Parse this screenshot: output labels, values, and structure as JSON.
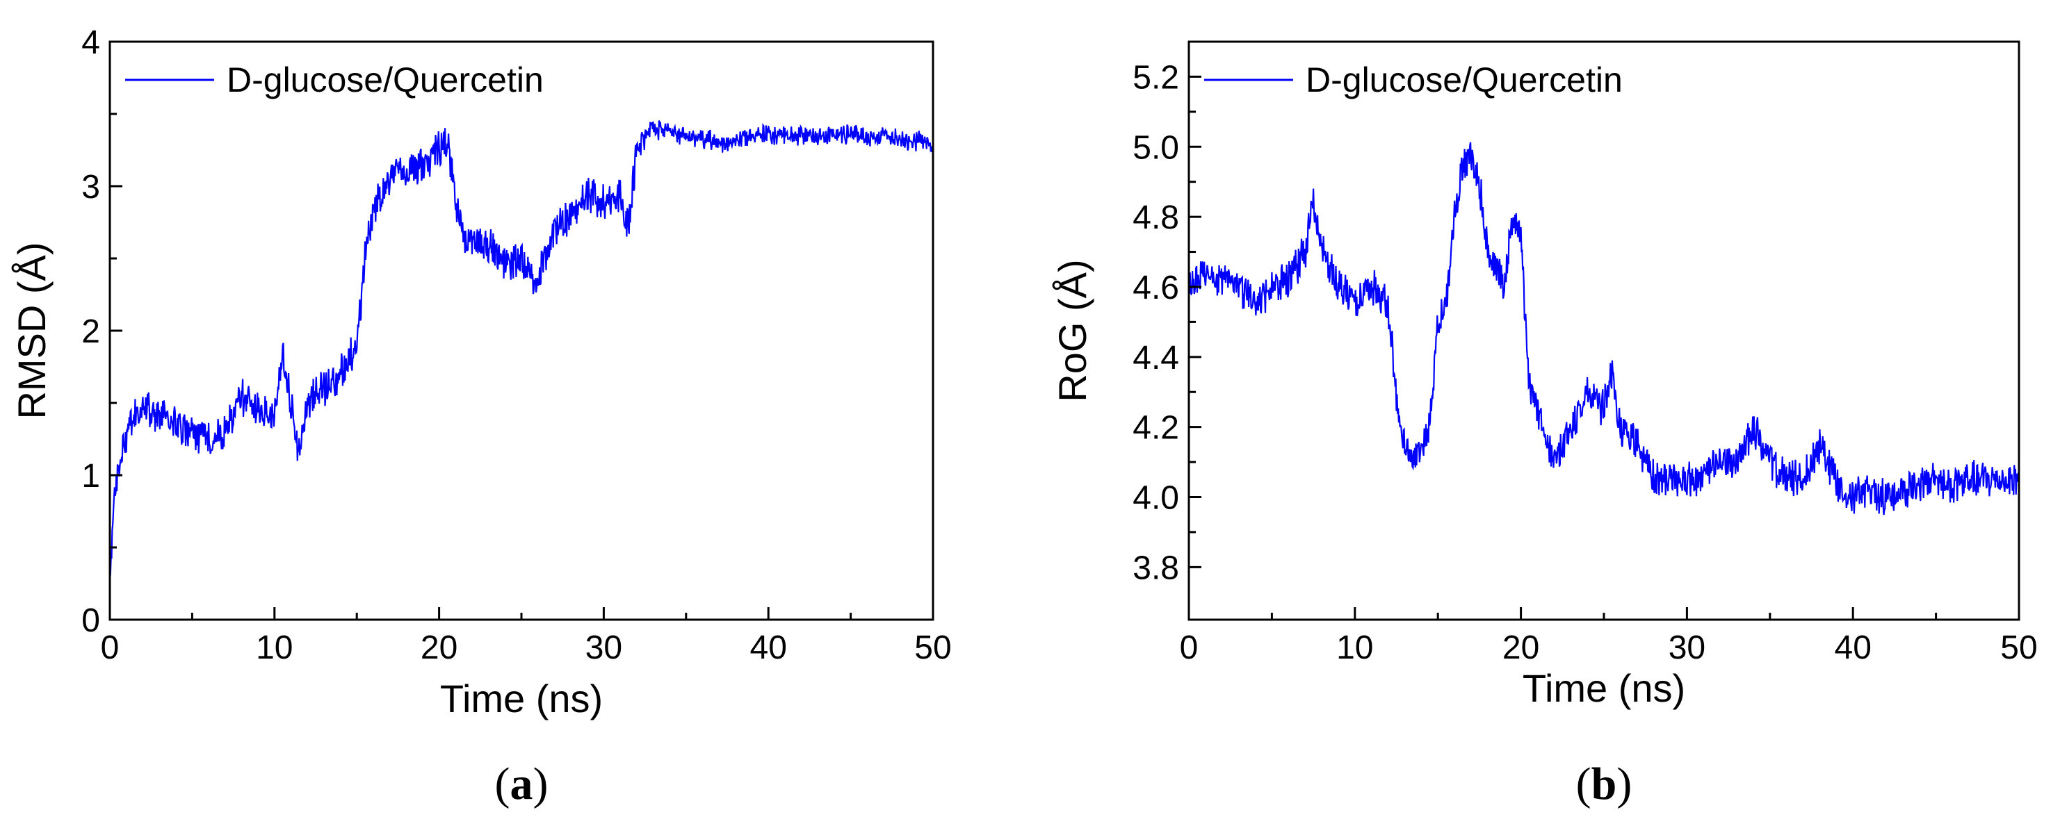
{
  "chart_data": [
    {
      "type": "line",
      "panel_label": [
        "(",
        "a",
        ")"
      ],
      "xlabel": "Time (ns)",
      "ylabel": "RMSD (Å)",
      "xlim": [
        0,
        50
      ],
      "ylim": [
        0,
        4
      ],
      "xticks": [
        0,
        10,
        20,
        30,
        40,
        50
      ],
      "xtick_labels": [
        "0",
        "10",
        "20",
        "30",
        "40",
        "50"
      ],
      "yticks": [
        0,
        1,
        2,
        3,
        4
      ],
      "ytick_labels": [
        "0",
        "1",
        "2",
        "3",
        "4"
      ],
      "grid": false,
      "legend_position": "top-left",
      "series": [
        {
          "name": "D-glucose/Quercetin",
          "color": "#0000ff",
          "x": [
            0,
            0.25,
            0.5,
            1,
            1.5,
            2,
            3,
            4,
            5,
            6,
            7,
            8,
            9,
            10,
            10.5,
            11,
            11.5,
            12,
            13,
            14,
            15,
            15.5,
            16,
            17,
            18,
            19,
            20,
            20.5,
            21,
            21.5,
            22,
            23,
            24,
            25,
            26,
            27,
            28,
            29,
            30,
            31,
            31.5,
            32,
            33,
            34,
            35,
            36,
            37,
            38,
            39,
            40,
            41,
            42,
            43,
            44,
            45,
            46,
            47,
            48,
            49,
            50
          ],
          "y": [
            0.3,
            0.75,
            1.05,
            1.25,
            1.4,
            1.45,
            1.42,
            1.35,
            1.28,
            1.25,
            1.3,
            1.55,
            1.45,
            1.4,
            1.85,
            1.5,
            1.15,
            1.5,
            1.6,
            1.7,
            1.9,
            2.5,
            2.85,
            3.05,
            3.1,
            3.15,
            3.25,
            3.3,
            2.9,
            2.65,
            2.6,
            2.6,
            2.45,
            2.5,
            2.35,
            2.7,
            2.8,
            2.95,
            2.9,
            2.95,
            2.7,
            3.25,
            3.4,
            3.38,
            3.35,
            3.32,
            3.3,
            3.33,
            3.35,
            3.36,
            3.35,
            3.34,
            3.36,
            3.35,
            3.37,
            3.34,
            3.35,
            3.33,
            3.32,
            3.3
          ]
        }
      ]
    },
    {
      "type": "line",
      "panel_label": [
        "(",
        "b",
        ")"
      ],
      "xlabel": "Time (ns)",
      "ylabel": "RoG (Å)",
      "xlim": [
        0,
        50
      ],
      "ylim": [
        3.65,
        5.3
      ],
      "xticks": [
        0,
        10,
        20,
        30,
        40,
        50
      ],
      "xtick_labels": [
        "0",
        "10",
        "20",
        "30",
        "40",
        "50"
      ],
      "yticks": [
        3.8,
        4.0,
        4.2,
        4.4,
        4.6,
        4.8,
        5.0,
        5.2
      ],
      "ytick_labels": [
        "3.8",
        "4.0",
        "4.2",
        "4.4",
        "4.6",
        "4.8",
        "5.0",
        "5.2"
      ],
      "grid": false,
      "legend_position": "top-left",
      "series": [
        {
          "name": "D-glucose/Quercetin",
          "color": "#0000ff",
          "x": [
            0,
            1,
            2,
            3,
            4,
            5,
            6,
            7,
            7.5,
            8,
            9,
            10,
            11,
            12,
            12.5,
            13,
            13.5,
            14,
            14.5,
            15,
            15.5,
            16,
            16.5,
            17,
            17.5,
            18,
            19,
            19.5,
            20,
            20.5,
            21,
            22,
            23,
            24,
            25,
            25.5,
            26,
            27,
            28,
            29,
            30,
            31,
            32,
            33,
            34,
            35,
            36,
            37,
            38,
            39,
            40,
            41,
            42,
            43,
            44,
            45,
            46,
            47,
            48,
            49,
            50
          ],
          "y": [
            4.6,
            4.65,
            4.62,
            4.6,
            4.55,
            4.6,
            4.62,
            4.7,
            4.85,
            4.7,
            4.6,
            4.55,
            4.6,
            4.55,
            4.3,
            4.15,
            4.1,
            4.15,
            4.2,
            4.5,
            4.55,
            4.8,
            4.95,
            4.98,
            4.9,
            4.7,
            4.6,
            4.8,
            4.75,
            4.3,
            4.25,
            4.1,
            4.2,
            4.3,
            4.25,
            4.35,
            4.2,
            4.15,
            4.05,
            4.05,
            4.05,
            4.05,
            4.1,
            4.1,
            4.2,
            4.1,
            4.05,
            4.05,
            4.15,
            4.05,
            4.0,
            4.02,
            4.0,
            4.02,
            4.03,
            4.05,
            4.03,
            4.05,
            4.05,
            4.05,
            4.05
          ]
        }
      ]
    }
  ]
}
